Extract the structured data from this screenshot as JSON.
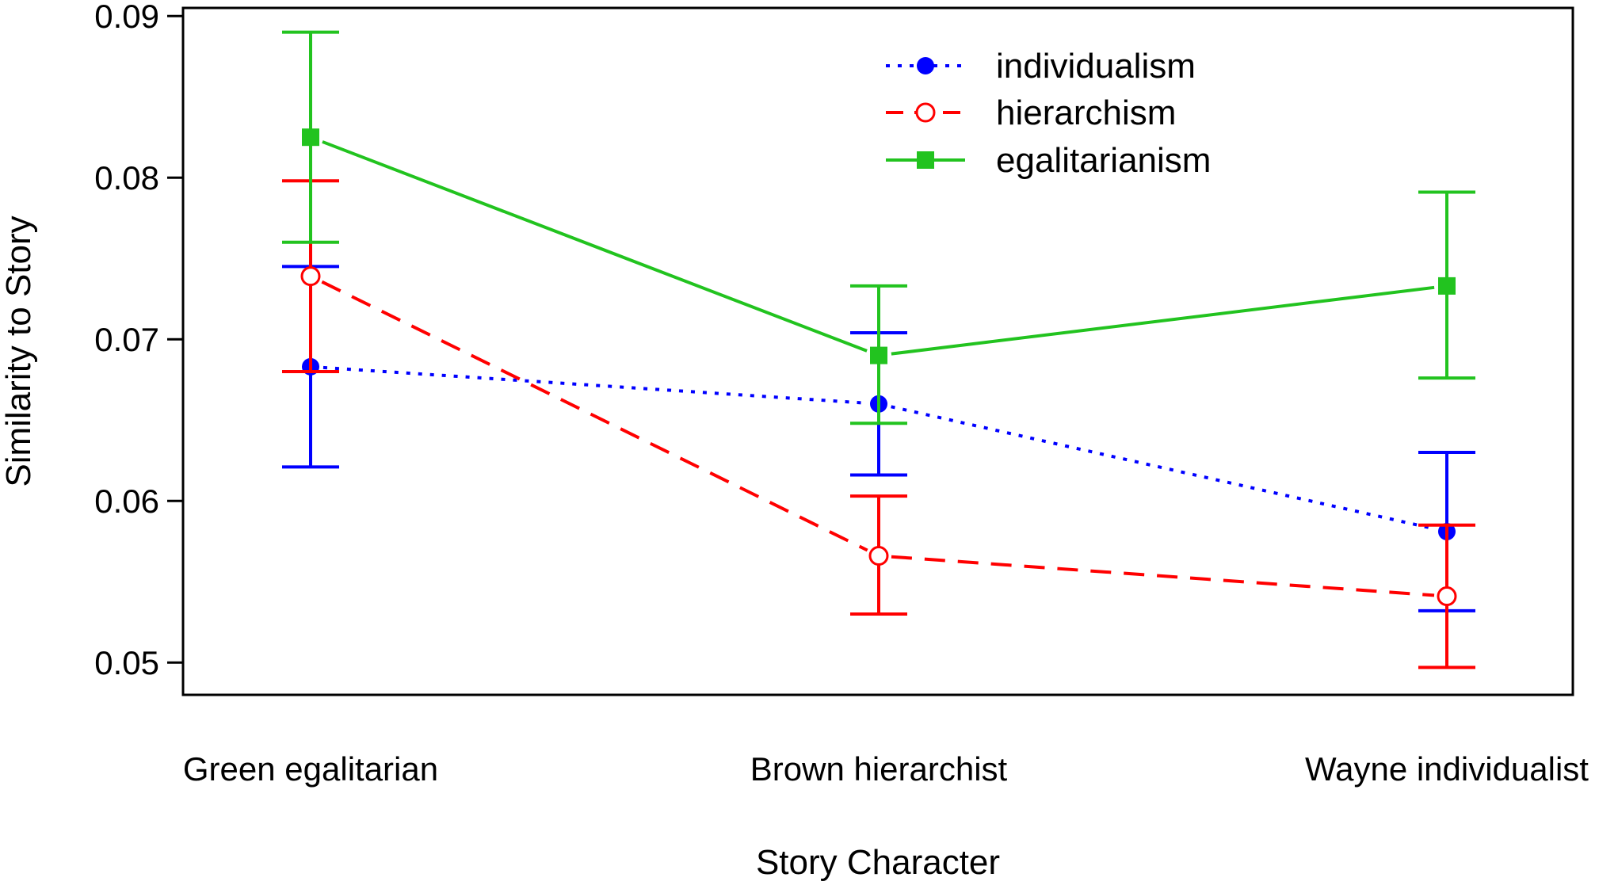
{
  "chart_data": {
    "type": "line",
    "title": "",
    "xlabel": "Story Character",
    "ylabel": "Similarity to Story",
    "categories": [
      "Green egalitarian",
      "Brown hierarchist",
      "Wayne individualist"
    ],
    "ylim": [
      0.048,
      0.0905
    ],
    "yticks": [
      0.05,
      0.06,
      0.07,
      0.08,
      0.09
    ],
    "ytick_labels": [
      "0.05",
      "0.06",
      "0.07",
      "0.08",
      "0.09"
    ],
    "legend_position": "top-right",
    "grid": false,
    "error_bars": true,
    "series": [
      {
        "name": "individualism",
        "color": "#0000ff",
        "line_style": "dotted",
        "marker": "filled-circle",
        "values": [
          0.0683,
          0.066,
          0.0581
        ],
        "lower": [
          0.0621,
          0.0616,
          0.0532
        ],
        "upper": [
          0.0745,
          0.0704,
          0.063
        ]
      },
      {
        "name": "hierarchism",
        "color": "#ff0000",
        "line_style": "dashed",
        "marker": "open-circle",
        "values": [
          0.0739,
          0.0566,
          0.0541
        ],
        "lower": [
          0.068,
          0.053,
          0.0497
        ],
        "upper": [
          0.0798,
          0.0603,
          0.0585
        ]
      },
      {
        "name": "egalitarianism",
        "color": "#22c31f",
        "line_style": "solid",
        "marker": "filled-square",
        "values": [
          0.0825,
          0.069,
          0.0733
        ],
        "lower": [
          0.076,
          0.0648,
          0.0676
        ],
        "upper": [
          0.089,
          0.0733,
          0.0791
        ]
      }
    ]
  }
}
